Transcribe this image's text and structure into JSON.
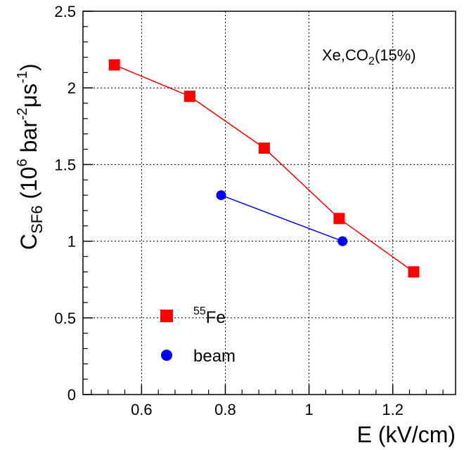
{
  "chart_data": {
    "type": "scatter",
    "title": "",
    "xlabel": "E (kV/cm)",
    "ylabel": {
      "main": "C",
      "sub": "SF6",
      "unit_open": " (10",
      "unit_exp1": "6",
      "unit_mid1": " bar",
      "unit_exp2": "-2",
      "unit_mid2": "μs",
      "unit_exp3": "-1",
      "unit_close": ")"
    },
    "xlim": [
      0.46,
      1.35
    ],
    "ylim": [
      0,
      2.5
    ],
    "x_ticks": [
      0.6,
      0.8,
      1,
      1.2
    ],
    "x_tick_labels": [
      "0.6",
      "0.8",
      "1",
      "1.2"
    ],
    "y_ticks": [
      0,
      0.5,
      1,
      1.5,
      2,
      2.5
    ],
    "y_tick_labels": [
      "0",
      "0.5",
      "1",
      "1.5",
      "2",
      "2.5"
    ],
    "grid": true,
    "annotation": {
      "pre": "Xe,CO",
      "sub": "2",
      "post": "(15%)"
    },
    "legend_position": "bottom-left",
    "series": [
      {
        "name": "55Fe",
        "name_sup": "55",
        "name_base": "Fe",
        "marker": "square",
        "color": "#ff0000",
        "x": [
          0.535,
          0.715,
          0.893,
          1.072,
          1.25
        ],
        "y": [
          2.15,
          1.945,
          1.607,
          1.148,
          0.8
        ]
      },
      {
        "name": "beam",
        "marker": "circle",
        "color": "#0000ff",
        "x": [
          0.79,
          1.08
        ],
        "y": [
          1.3,
          1.0
        ]
      }
    ]
  }
}
